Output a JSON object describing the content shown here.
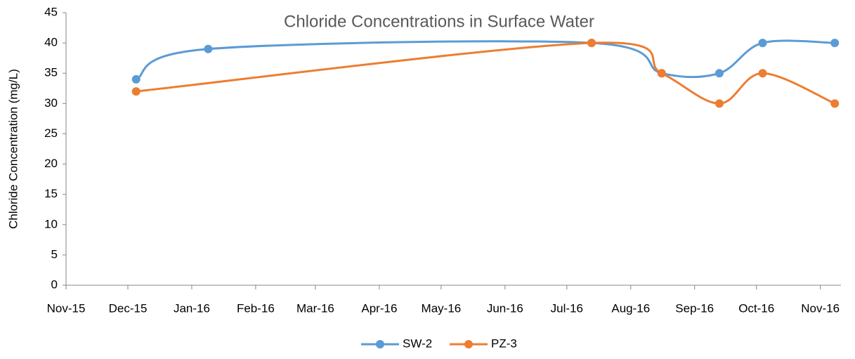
{
  "chart_data": {
    "type": "line",
    "title": "Chloride Concentrations in Surface Water",
    "y_label": "Chloride Concentration (mg/L)",
    "series": [
      {
        "name": "SW-2",
        "color": "#5b9bd5",
        "x": [
          42343,
          42378,
          42564,
          42598,
          42626,
          42647,
          42682
        ],
        "values": [
          34,
          39,
          40,
          35,
          35,
          40,
          40
        ]
      },
      {
        "name": "PZ-3",
        "color": "#ed7d31",
        "x": [
          42343,
          42564,
          42598,
          42626,
          42647,
          42682
        ],
        "values": [
          32,
          40,
          35,
          30,
          35,
          30
        ]
      }
    ],
    "xlim": [
      42309,
      42685
    ],
    "xticks": [
      {
        "value": 42309,
        "label": "Nov-15"
      },
      {
        "value": 42339,
        "label": "Dec-15"
      },
      {
        "value": 42370,
        "label": "Jan-16"
      },
      {
        "value": 42401,
        "label": "Feb-16"
      },
      {
        "value": 42430,
        "label": "Mar-16"
      },
      {
        "value": 42461,
        "label": "Apr-16"
      },
      {
        "value": 42491,
        "label": "May-16"
      },
      {
        "value": 42522,
        "label": "Jun-16"
      },
      {
        "value": 42552,
        "label": "Jul-16"
      },
      {
        "value": 42583,
        "label": "Aug-16"
      },
      {
        "value": 42614,
        "label": "Sep-16"
      },
      {
        "value": 42644,
        "label": "Oct-16"
      },
      {
        "value": 42675,
        "label": "Nov-16"
      }
    ],
    "ylim": [
      0,
      45
    ],
    "yticks": [
      0,
      5,
      10,
      15,
      20,
      25,
      30,
      35,
      40,
      45
    ],
    "grid": false,
    "smooth": true,
    "legend": "bottom"
  }
}
